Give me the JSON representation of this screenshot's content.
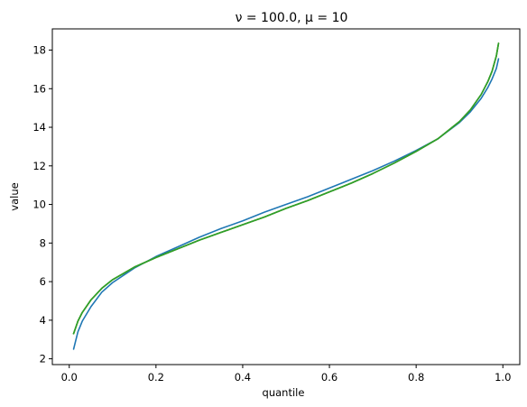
{
  "chart_data": {
    "type": "line",
    "title": "ν = 100.0, μ = 10",
    "xlabel": "quantile",
    "ylabel": "value",
    "xlim": [
      -0.039,
      1.039
    ],
    "ylim": [
      1.7,
      19.1
    ],
    "xticks": [
      0.0,
      0.2,
      0.4,
      0.6,
      0.8,
      1.0
    ],
    "xtick_labels": [
      "0.0",
      "0.2",
      "0.4",
      "0.6",
      "0.8",
      "1.0"
    ],
    "yticks": [
      2,
      4,
      6,
      8,
      10,
      12,
      14,
      16,
      18
    ],
    "ytick_labels": [
      "2",
      "4",
      "6",
      "8",
      "10",
      "12",
      "14",
      "16",
      "18"
    ],
    "grid": false,
    "series": [
      {
        "color": "#1f77b4",
        "x": [
          0.01,
          0.02,
          0.03,
          0.05,
          0.075,
          0.1,
          0.15,
          0.2,
          0.25,
          0.3,
          0.35,
          0.4,
          0.45,
          0.5,
          0.55,
          0.6,
          0.65,
          0.7,
          0.75,
          0.8,
          0.85,
          0.9,
          0.925,
          0.95,
          0.965,
          0.975,
          0.985,
          0.99
        ],
        "y": [
          2.5,
          3.4,
          3.95,
          4.7,
          5.45,
          5.95,
          6.7,
          7.3,
          7.8,
          8.3,
          8.75,
          9.15,
          9.6,
          10.0,
          10.4,
          10.85,
          11.3,
          11.75,
          12.25,
          12.8,
          13.4,
          14.25,
          14.8,
          15.5,
          16.05,
          16.5,
          17.05,
          17.55
        ]
      },
      {
        "color": "#2ca02c",
        "x": [
          0.01,
          0.02,
          0.03,
          0.05,
          0.075,
          0.1,
          0.15,
          0.2,
          0.25,
          0.3,
          0.35,
          0.4,
          0.45,
          0.5,
          0.55,
          0.6,
          0.65,
          0.7,
          0.75,
          0.8,
          0.85,
          0.9,
          0.925,
          0.95,
          0.965,
          0.975,
          0.985,
          0.99
        ],
        "y": [
          3.3,
          3.95,
          4.4,
          5.05,
          5.65,
          6.1,
          6.75,
          7.25,
          7.7,
          8.15,
          8.55,
          8.95,
          9.35,
          9.8,
          10.2,
          10.65,
          11.1,
          11.6,
          12.15,
          12.75,
          13.4,
          14.3,
          14.9,
          15.7,
          16.35,
          16.9,
          17.7,
          18.35
        ]
      },
      {
        "color": "#9a8a1a",
        "x": [
          0.01,
          0.02,
          0.03,
          0.05,
          0.075,
          0.1,
          0.15,
          0.2,
          0.25,
          0.3,
          0.35,
          0.4,
          0.45,
          0.5,
          0.55,
          0.6,
          0.65,
          0.7,
          0.75,
          0.8,
          0.85,
          0.9,
          0.925,
          0.95,
          0.965,
          0.975,
          0.985,
          0.99
        ],
        "y": [
          3.3,
          3.95,
          4.4,
          5.05,
          5.65,
          6.1,
          6.75,
          7.25,
          7.7,
          8.15,
          8.55,
          8.95,
          9.35,
          9.8,
          10.2,
          10.65,
          11.1,
          11.6,
          12.15,
          12.75,
          13.4,
          14.3,
          14.9,
          15.7,
          16.35,
          16.9,
          17.7,
          18.35
        ]
      },
      {
        "color": "#2ca02c",
        "x": [
          0.01,
          0.02,
          0.03,
          0.05,
          0.075,
          0.1,
          0.15,
          0.2,
          0.25,
          0.3,
          0.35,
          0.4,
          0.45,
          0.5,
          0.55,
          0.6,
          0.65,
          0.7,
          0.75,
          0.8,
          0.85,
          0.9,
          0.925,
          0.95,
          0.965,
          0.975,
          0.985,
          0.99
        ],
        "y": [
          3.3,
          3.95,
          4.4,
          5.05,
          5.65,
          6.1,
          6.75,
          7.25,
          7.7,
          8.15,
          8.55,
          8.95,
          9.35,
          9.8,
          10.2,
          10.65,
          11.1,
          11.6,
          12.15,
          12.75,
          13.4,
          14.3,
          14.9,
          15.7,
          16.35,
          16.9,
          17.7,
          18.35
        ]
      }
    ]
  }
}
